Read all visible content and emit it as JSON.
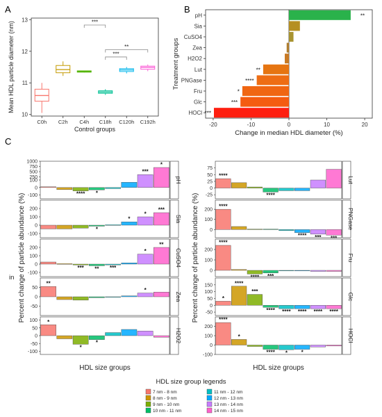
{
  "figure": {
    "panel_a_label": "A",
    "panel_b_label": "B",
    "panel_c_label": "C",
    "stray_label": "in"
  },
  "chart_data": [
    {
      "panel": "A",
      "type": "box",
      "xlabel": "Control groups",
      "ylabel": "Mean HDL particle diameter (nm)",
      "ylim": [
        9.95,
        13.05
      ],
      "yticks": [
        10,
        11,
        12,
        13
      ],
      "categories": [
        "C0h",
        "C2h",
        "C4h",
        "C18h",
        "C120h",
        "C192h"
      ],
      "colors": [
        "#f8766d",
        "#c49a00",
        "#53b400",
        "#00c094",
        "#00b6eb",
        "#fb61d7"
      ],
      "boxes": [
        {
          "min": 10.05,
          "q1": 10.42,
          "median": 10.6,
          "q3": 10.8,
          "max": 11.0
        },
        {
          "min": 11.22,
          "q1": 11.32,
          "median": 11.42,
          "q3": 11.55,
          "max": 11.68
        },
        {
          "min": 11.33,
          "q1": 11.34,
          "median": 11.36,
          "q3": 11.38,
          "max": 11.39
        },
        {
          "min": 10.62,
          "q1": 10.67,
          "median": 10.71,
          "q3": 10.75,
          "max": 10.8
        },
        {
          "min": 11.3,
          "q1": 11.36,
          "median": 11.41,
          "q3": 11.45,
          "max": 11.5
        },
        {
          "min": 11.37,
          "q1": 11.43,
          "median": 11.49,
          "q3": 11.53,
          "max": 11.58
        }
      ],
      "brackets": [
        {
          "from": "C4h",
          "to": "C18h",
          "label": "***",
          "y": 12.83
        },
        {
          "from": "C18h",
          "to": "C192h",
          "label": "**",
          "y": 12.05
        },
        {
          "from": "C18h",
          "to": "C120h",
          "label": "***",
          "y": 11.82
        }
      ]
    },
    {
      "panel": "B",
      "type": "bar",
      "orientation": "horizontal",
      "xlabel": "Change in median HDL diameter (%)",
      "ylabel": "Treatment groups",
      "xlim": [
        -22,
        22
      ],
      "xticks": [
        -20,
        -10,
        0,
        10,
        20
      ],
      "categories": [
        "pH",
        "Sia",
        "CuSO4",
        "Zea",
        "H2O2",
        "Lut",
        "PNGase",
        "Fru",
        "Glc",
        "HOCl"
      ],
      "values": [
        16.3,
        2.9,
        1.2,
        -0.6,
        -1.1,
        -6.8,
        -8.5,
        -12.3,
        -12.8,
        -19.8
      ],
      "colors": [
        "#2ab24b",
        "#b58f22",
        "#a89330",
        "#b07f30",
        "#c87a25",
        "#e67512",
        "#ee6d14",
        "#f06612",
        "#f45c10",
        "#fe1f10"
      ],
      "significance": [
        "**",
        "",
        "",
        "",
        "",
        "**",
        "****",
        "*",
        "***",
        "***"
      ]
    },
    {
      "panel": "C",
      "type": "bar",
      "xlabel": "HDL size groups",
      "ylabel": "Percent change of particle abundance (%)",
      "legend_title": "HDL size group legends",
      "legend_placement": "bottom",
      "size_groups": [
        "7 nm - 8 nm",
        "8 nm - 9 nm",
        "9 nm - 10 nm",
        "10 nm - 11 nm",
        "11 nm - 12 nm",
        "12 nm - 13 nm",
        "13 nm - 14 nm",
        "14 nm - 15 nm"
      ],
      "colors": [
        "#f8766d",
        "#cd9600",
        "#7cae00",
        "#00be67",
        "#00bfc4",
        "#00a9ff",
        "#c77cff",
        "#ff61cc"
      ],
      "facets": [
        {
          "name": "pH",
          "column": "left",
          "ylim": [
            -150,
            1000
          ],
          "yticks": [
            -100,
            0,
            100,
            250,
            500,
            750,
            1000
          ],
          "tick_labels": [
            "-100",
            "0",
            "100",
            "250",
            "500",
            "750",
            "1000"
          ],
          "tick_scale": "piecewise",
          "values": [
            10,
            -28,
            -45,
            -32,
            -15,
            70,
            360,
            700
          ],
          "significance": [
            "",
            "",
            "****",
            "*",
            "",
            "",
            "***",
            "*"
          ]
        },
        {
          "name": "Sia",
          "column": "left",
          "ylim": [
            -150,
            300
          ],
          "yticks": [
            -100,
            0,
            100,
            200
          ],
          "values": [
            -45,
            -45,
            -35,
            -12,
            5,
            40,
            100,
            150
          ],
          "significance": [
            "",
            "",
            "",
            "*",
            "",
            "*",
            "*",
            "***"
          ]
        },
        {
          "name": "CuSO4",
          "column": "left",
          "ylim": [
            -150,
            300
          ],
          "yticks": [
            -100,
            0,
            100,
            200
          ],
          "values": [
            25,
            5,
            -10,
            -20,
            -10,
            15,
            120,
            200
          ],
          "significance": [
            "",
            "",
            "***",
            "**",
            "***",
            "",
            "*",
            "**"
          ]
        },
        {
          "name": "Zea",
          "column": "left",
          "ylim": [
            -100,
            100
          ],
          "yticks": [
            -50,
            0,
            50
          ],
          "values": [
            55,
            -15,
            -18,
            -5,
            0,
            5,
            20,
            25
          ],
          "significance": [
            "**",
            "",
            "",
            "",
            "",
            "",
            "*",
            ""
          ]
        },
        {
          "name": "H2O2",
          "column": "left",
          "ylim": [
            -120,
            120
          ],
          "yticks": [
            -100,
            -50,
            0,
            50,
            100
          ],
          "values": [
            70,
            -20,
            -55,
            -25,
            20,
            40,
            30,
            -10
          ],
          "significance": [
            "*",
            "",
            "*",
            "*",
            "",
            "",
            "",
            ""
          ]
        },
        {
          "name": "Lut",
          "column": "right",
          "ylim": [
            -40,
            100
          ],
          "yticks": [
            -25,
            0,
            25,
            50,
            75
          ],
          "values": [
            35,
            20,
            4,
            -15,
            -10,
            -10,
            30,
            70
          ],
          "significance": [
            "****",
            "",
            "",
            "****",
            "",
            "",
            "",
            ""
          ]
        },
        {
          "name": "PNGase",
          "column": "right",
          "ylim": [
            -80,
            290
          ],
          "yticks": [
            0,
            100,
            200
          ],
          "values": [
            200,
            30,
            5,
            5,
            -10,
            -30,
            -45,
            -55
          ],
          "significance": [
            "****",
            "",
            "",
            "",
            "",
            "****",
            "***",
            "***"
          ]
        },
        {
          "name": "Fru",
          "column": "right",
          "ylim": [
            -60,
            300
          ],
          "yticks": [
            0,
            100,
            200
          ],
          "values": [
            240,
            8,
            -35,
            -25,
            -5,
            -5,
            -10,
            -10
          ],
          "significance": [
            "****",
            "",
            "****",
            "***",
            "",
            "",
            "",
            ""
          ]
        },
        {
          "name": "Glc",
          "column": "right",
          "ylim": [
            -75,
            200
          ],
          "yticks": [
            -50,
            0,
            50,
            100,
            150
          ],
          "values": [
            30,
            140,
            80,
            -15,
            -25,
            -25,
            -25,
            -25
          ],
          "significance": [
            "*",
            "****",
            "***",
            "****",
            "****",
            "****",
            "****",
            "****"
          ]
        },
        {
          "name": "HOCl",
          "column": "right",
          "ylim": [
            -100,
            300
          ],
          "yticks": [
            -100,
            0,
            100,
            200
          ],
          "values": [
            240,
            60,
            -15,
            -45,
            -50,
            -45,
            -20,
            -10
          ],
          "significance": [
            "****",
            "*",
            "",
            "****",
            "*",
            "*",
            "",
            ""
          ]
        }
      ]
    }
  ]
}
